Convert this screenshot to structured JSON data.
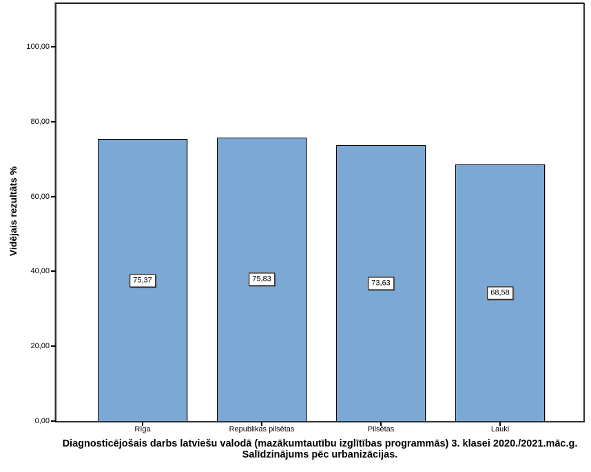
{
  "chart_data": {
    "type": "bar",
    "title_lines": [
      "Diagnosticējošais darbs latviešu valodā (mazākumtautību izglītības programmās) 3. klasei 2020./2021.māc.g.",
      "Salīdzinājums pēc urbanizācijas."
    ],
    "ylabel": "Vidējais rezultāts %",
    "xlabel": "",
    "categories": [
      "Rīga",
      "Republikas pilsētas",
      "Pilsētas",
      "Lauki"
    ],
    "values": [
      75.37,
      75.83,
      73.63,
      68.58
    ],
    "value_labels": [
      "75,37",
      "75,83",
      "73,63",
      "68,58"
    ],
    "y_ticks": [
      {
        "value": 0,
        "label": "0,00"
      },
      {
        "value": 20,
        "label": "20,00"
      },
      {
        "value": 40,
        "label": "40,00"
      },
      {
        "value": 60,
        "label": "60,00"
      },
      {
        "value": 80,
        "label": "80,00"
      },
      {
        "value": 100,
        "label": "100,00"
      }
    ],
    "ylim": [
      0,
      111.4
    ],
    "grid": false,
    "legend": "none",
    "colors": {
      "bar_fill": "#7BA8D5",
      "bar_border": "#000000",
      "frame": "#2E2E2E",
      "background": "#FFFFFF",
      "label_box_bg": "#FFFFFF",
      "text": "#000000"
    }
  }
}
